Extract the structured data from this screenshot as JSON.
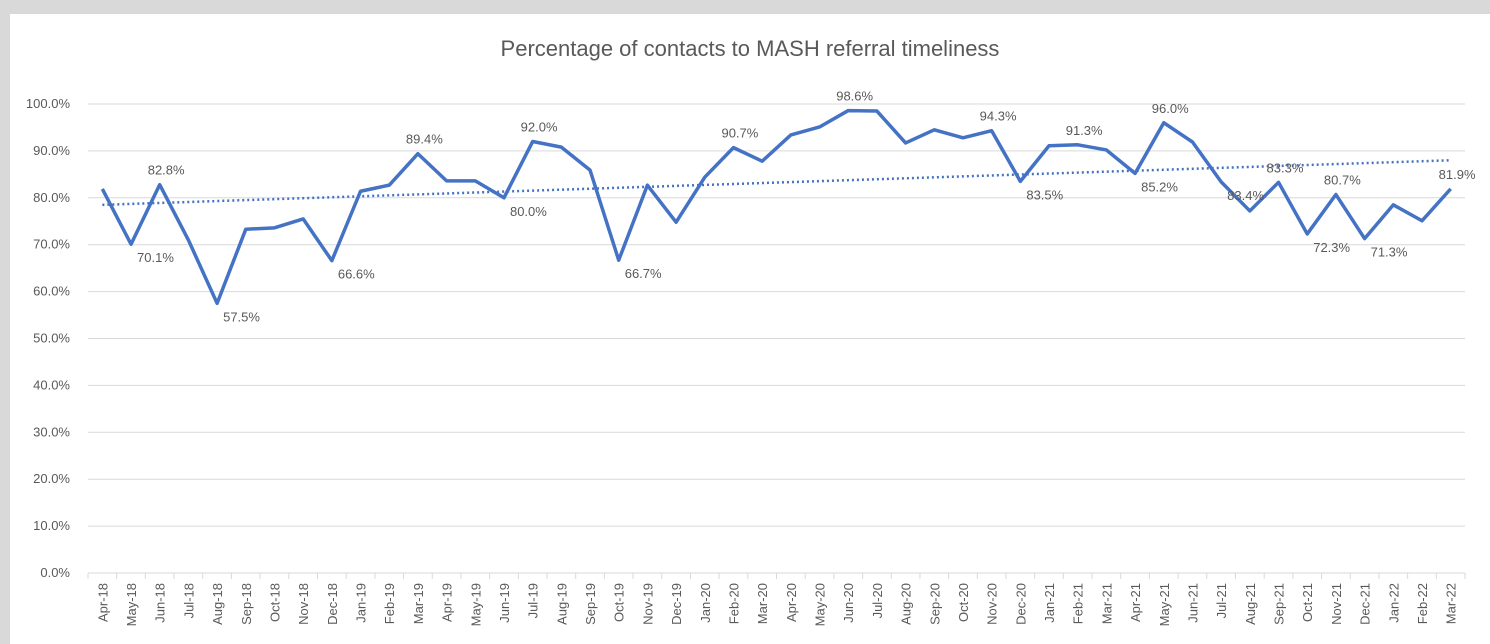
{
  "chart_data": {
    "type": "line",
    "title": "Percentage of contacts to MASH referral timeliness",
    "categories": [
      "Apr-18",
      "May-18",
      "Jun-18",
      "Jul-18",
      "Aug-18",
      "Sep-18",
      "Oct-18",
      "Nov-18",
      "Dec-18",
      "Jan-19",
      "Feb-19",
      "Mar-19",
      "Apr-19",
      "May-19",
      "Jun-19",
      "Jul-19",
      "Aug-19",
      "Sep-19",
      "Oct-19",
      "Nov-19",
      "Dec-19",
      "Jan-20",
      "Feb-20",
      "Mar-20",
      "Apr-20",
      "May-20",
      "Jun-20",
      "Jul-20",
      "Aug-20",
      "Sep-20",
      "Oct-20",
      "Nov-20",
      "Dec-20",
      "Jan-21",
      "Feb-21",
      "Mar-21",
      "Apr-21",
      "May-21",
      "Jun-21",
      "Jul-21",
      "Aug-21",
      "Sep-21",
      "Oct-21",
      "Nov-21",
      "Dec-21",
      "Jan-22",
      "Feb-22",
      "Mar-22"
    ],
    "values": [
      81.9,
      70.1,
      82.8,
      71.0,
      57.5,
      73.3,
      73.6,
      75.5,
      66.6,
      81.4,
      82.7,
      89.4,
      83.6,
      83.6,
      80.0,
      92.0,
      90.8,
      85.9,
      66.7,
      82.7,
      74.8,
      84.4,
      90.7,
      87.8,
      93.4,
      95.1,
      98.6,
      98.5,
      91.7,
      94.5,
      92.8,
      94.3,
      83.5,
      91.1,
      91.3,
      90.2,
      85.2,
      96.0,
      91.9,
      83.4,
      77.2,
      83.3,
      72.3,
      80.7,
      71.3,
      78.5,
      75.1,
      81.9
    ],
    "value_labels": [
      null,
      "70.1%",
      "82.8%",
      null,
      "57.5%",
      null,
      null,
      null,
      "66.6%",
      null,
      null,
      "89.4%",
      null,
      null,
      "80.0%",
      "92.0%",
      null,
      null,
      "66.7%",
      null,
      null,
      null,
      "90.7%",
      null,
      null,
      null,
      "98.6%",
      null,
      null,
      null,
      null,
      "94.3%",
      "83.5%",
      null,
      "91.3%",
      null,
      "85.2%",
      "96.0%",
      null,
      "83.4%",
      null,
      "83.3%",
      "72.3%",
      "80.7%",
      "71.3%",
      null,
      null,
      "81.9%"
    ],
    "color": "#4472c4",
    "trendline": {
      "start": 78.5,
      "end": 88.0,
      "color": "#4472c4"
    },
    "ylim": [
      0,
      100
    ],
    "yticks": [
      {
        "value": 0,
        "label": "0.0%"
      },
      {
        "value": 10,
        "label": "10.0%"
      },
      {
        "value": 20,
        "label": "20.0%"
      },
      {
        "value": 30,
        "label": "30.0%"
      },
      {
        "value": 40,
        "label": "40.0%"
      },
      {
        "value": 50,
        "label": "50.0%"
      },
      {
        "value": 60,
        "label": "60.0%"
      },
      {
        "value": 70,
        "label": "70.0%"
      },
      {
        "value": 80,
        "label": "80.0%"
      },
      {
        "value": 90,
        "label": "90.0%"
      },
      {
        "value": 100,
        "label": "100.0%"
      }
    ],
    "grid": true
  }
}
